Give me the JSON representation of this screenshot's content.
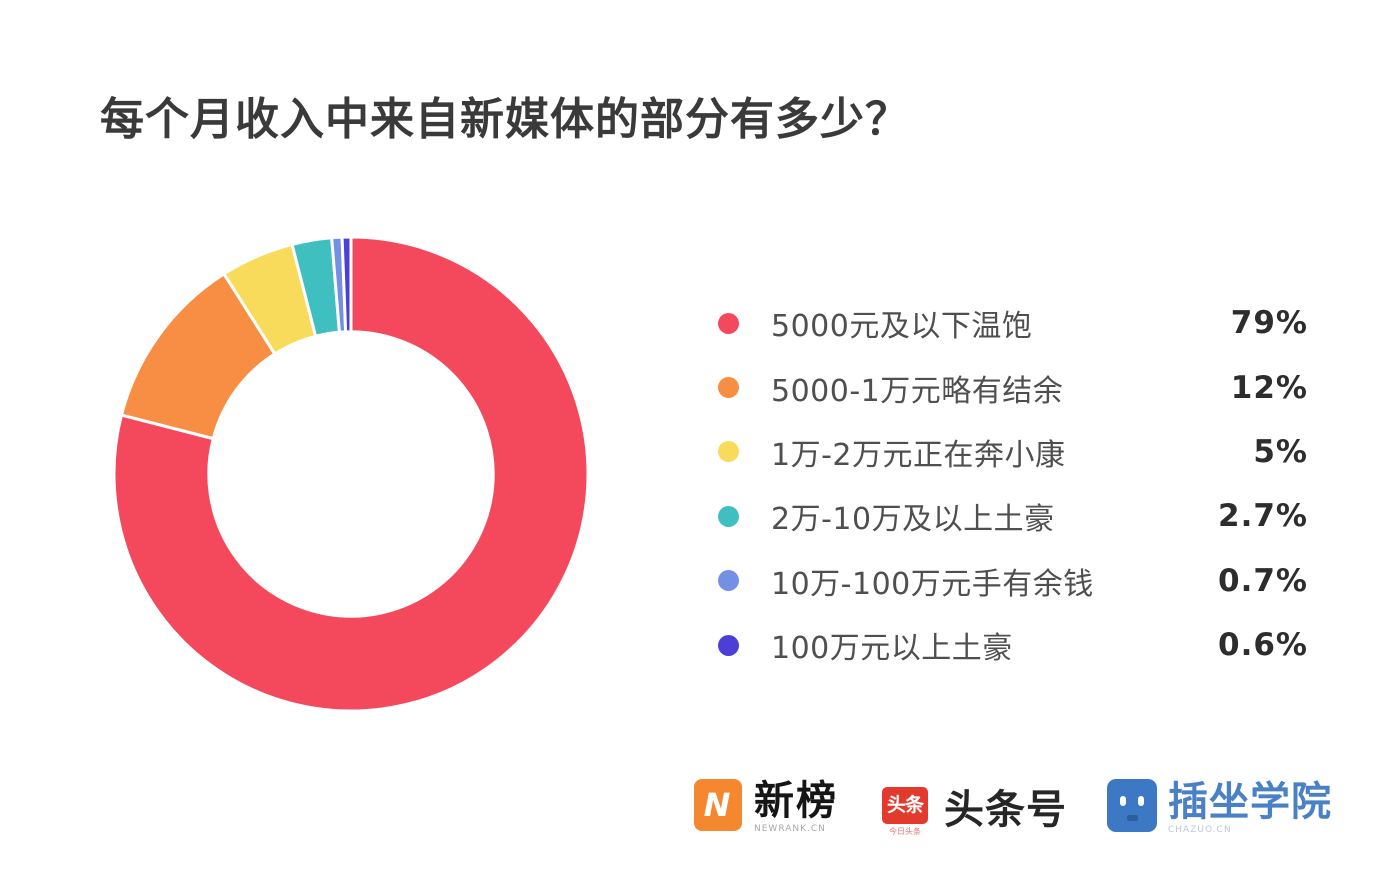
{
  "title": "每个月收入中来自新媒体的部分有多少？",
  "chart_data": {
    "type": "pie",
    "subtype": "donut",
    "title": "每个月收入中来自新媒体的部分有多少？",
    "categories": [
      "5000元及以下温饱",
      "5000-1万元略有结余",
      "1万-2万元正在奔小康",
      "2万-10万及以上土豪",
      "10万-100万元手有余钱",
      "100万元以上土豪"
    ],
    "values": [
      79,
      12,
      5,
      2.7,
      0.7,
      0.6
    ],
    "value_labels": [
      "79%",
      "12%",
      "5%",
      "2.7%",
      "0.7%",
      "0.6%"
    ],
    "colors": [
      "#F4495C",
      "#F78E44",
      "#F8DB5A",
      "#3FBFC0",
      "#7490E4",
      "#4C3FD6"
    ],
    "unit": "%",
    "start_angle_deg": 0,
    "direction": "clockwise",
    "inner_radius_ratio": 0.6,
    "legend_position": "right",
    "segment_gap_color": "#FFFFFF"
  },
  "footer": {
    "logos": [
      {
        "name": "newrank",
        "icon_letter": "N",
        "icon_color": "#F5872E",
        "text": "新榜",
        "subtext": "NEWRANK.CN"
      },
      {
        "name": "toutiao",
        "icon_text": "头条",
        "icon_color": "#E23B2E",
        "icon_subtext": "今日头条",
        "text": "头条号"
      },
      {
        "name": "chazuo",
        "icon_color": "#3D78C4",
        "text": "插坐学院",
        "text_color": "#4A80C4",
        "subtext": "CHAZUO.CN"
      }
    ]
  }
}
